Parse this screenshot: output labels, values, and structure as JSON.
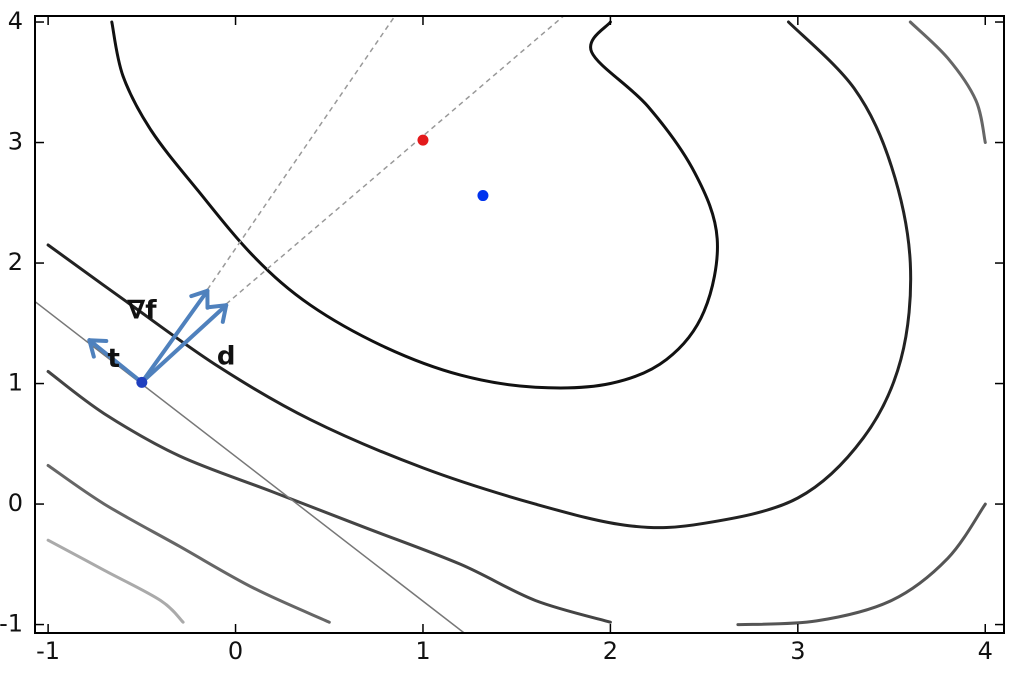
{
  "chart_data": {
    "type": "contour",
    "title": "",
    "xlabel": "",
    "ylabel": "",
    "xlim": [
      -1.07,
      4.1
    ],
    "ylim": [
      -1.07,
      4.05
    ],
    "grid": false,
    "x_ticks": [
      -1,
      0,
      1,
      2,
      3,
      4
    ],
    "y_ticks": [
      -1,
      0,
      1,
      2,
      3,
      4
    ],
    "x_tick_labels": [
      "-1",
      "0",
      "1",
      "2",
      "3",
      "4"
    ],
    "y_tick_labels": [
      "-1",
      "0",
      "1",
      "2",
      "3",
      "4"
    ],
    "contours": [
      {
        "name": "",
        "color": "#111111",
        "points": [
          [
            -0.66,
            4.0
          ],
          [
            -0.6,
            3.55
          ],
          [
            -0.45,
            3.1
          ],
          [
            -0.2,
            2.6
          ],
          [
            0.1,
            2.05
          ],
          [
            0.4,
            1.65
          ],
          [
            0.8,
            1.3
          ],
          [
            1.2,
            1.07
          ],
          [
            1.6,
            0.97
          ],
          [
            2.0,
            1.0
          ],
          [
            2.3,
            1.2
          ],
          [
            2.5,
            1.6
          ],
          [
            2.57,
            2.2
          ],
          [
            2.45,
            2.75
          ],
          [
            2.2,
            3.3
          ],
          [
            1.9,
            3.75
          ],
          [
            2.0,
            4.0
          ]
        ]
      },
      {
        "name": "",
        "color": "#222222",
        "points": [
          [
            -1.0,
            2.15
          ],
          [
            -0.6,
            1.7
          ],
          [
            -0.1,
            1.15
          ],
          [
            0.4,
            0.7
          ],
          [
            1.0,
            0.3
          ],
          [
            1.6,
            0.0
          ],
          [
            2.1,
            -0.18
          ],
          [
            2.5,
            -0.16
          ],
          [
            3.0,
            0.05
          ],
          [
            3.35,
            0.55
          ],
          [
            3.55,
            1.2
          ],
          [
            3.6,
            2.0
          ],
          [
            3.5,
            2.8
          ],
          [
            3.3,
            3.45
          ],
          [
            2.95,
            4.0
          ]
        ]
      },
      {
        "name": "",
        "color": "#444444",
        "points": [
          [
            -1.0,
            1.1
          ],
          [
            -0.7,
            0.75
          ],
          [
            -0.3,
            0.4
          ],
          [
            0.2,
            0.1
          ],
          [
            0.7,
            -0.2
          ],
          [
            1.2,
            -0.5
          ],
          [
            1.6,
            -0.8
          ],
          [
            2.0,
            -0.98
          ]
        ]
      },
      {
        "name": "",
        "color": "#555555",
        "points": [
          [
            2.68,
            -1.0
          ],
          [
            3.1,
            -0.97
          ],
          [
            3.5,
            -0.8
          ],
          [
            3.8,
            -0.45
          ],
          [
            4.0,
            0.0
          ]
        ]
      },
      {
        "name": "",
        "color": "#666666",
        "points": [
          [
            3.6,
            4.0
          ],
          [
            3.8,
            3.7
          ],
          [
            3.95,
            3.35
          ],
          [
            4.0,
            3.0
          ]
        ]
      },
      {
        "name": "",
        "color": "#666666",
        "points": [
          [
            -1.0,
            0.32
          ],
          [
            -0.7,
            0.0
          ],
          [
            -0.3,
            -0.35
          ],
          [
            0.1,
            -0.7
          ],
          [
            0.5,
            -0.98
          ]
        ]
      },
      {
        "name": "",
        "color": "#aaaaaa",
        "points": [
          [
            -1.0,
            -0.3
          ],
          [
            -0.7,
            -0.55
          ],
          [
            -0.4,
            -0.8
          ],
          [
            -0.28,
            -0.98
          ]
        ]
      }
    ],
    "tangent_line": {
      "points": [
        [
          -1.07,
          1.68
        ],
        [
          1.22,
          -1.07
        ]
      ],
      "color": "#777777"
    },
    "dashed_lines": [
      {
        "points": [
          [
            -0.15,
            1.78
          ],
          [
            0.85,
            4.05
          ]
        ],
        "color": "#999999"
      },
      {
        "points": [
          [
            -0.05,
            1.66
          ],
          [
            1.75,
            4.05
          ]
        ],
        "color": "#999999"
      }
    ],
    "points": [
      {
        "x": -0.5,
        "y": 1.01,
        "color": "#1f3fbf"
      },
      {
        "x": 1.0,
        "y": 3.02,
        "color": "#e31a1c"
      },
      {
        "x": 1.32,
        "y": 2.56,
        "color": "#0033ee"
      }
    ],
    "arrows": [
      {
        "label": "t",
        "from": [
          -0.5,
          1.01
        ],
        "to": [
          -0.78,
          1.36
        ],
        "color": "#4f81bd",
        "label_at": [
          -0.65,
          1.2
        ]
      },
      {
        "label": "∇f",
        "from": [
          -0.5,
          1.01
        ],
        "to": [
          -0.15,
          1.77
        ],
        "color": "#4f81bd",
        "label_at": [
          -0.5,
          1.6
        ]
      },
      {
        "label": "d",
        "from": [
          -0.5,
          1.01
        ],
        "to": [
          -0.05,
          1.65
        ],
        "color": "#4f81bd",
        "label_at": [
          -0.05,
          1.22
        ]
      }
    ]
  }
}
